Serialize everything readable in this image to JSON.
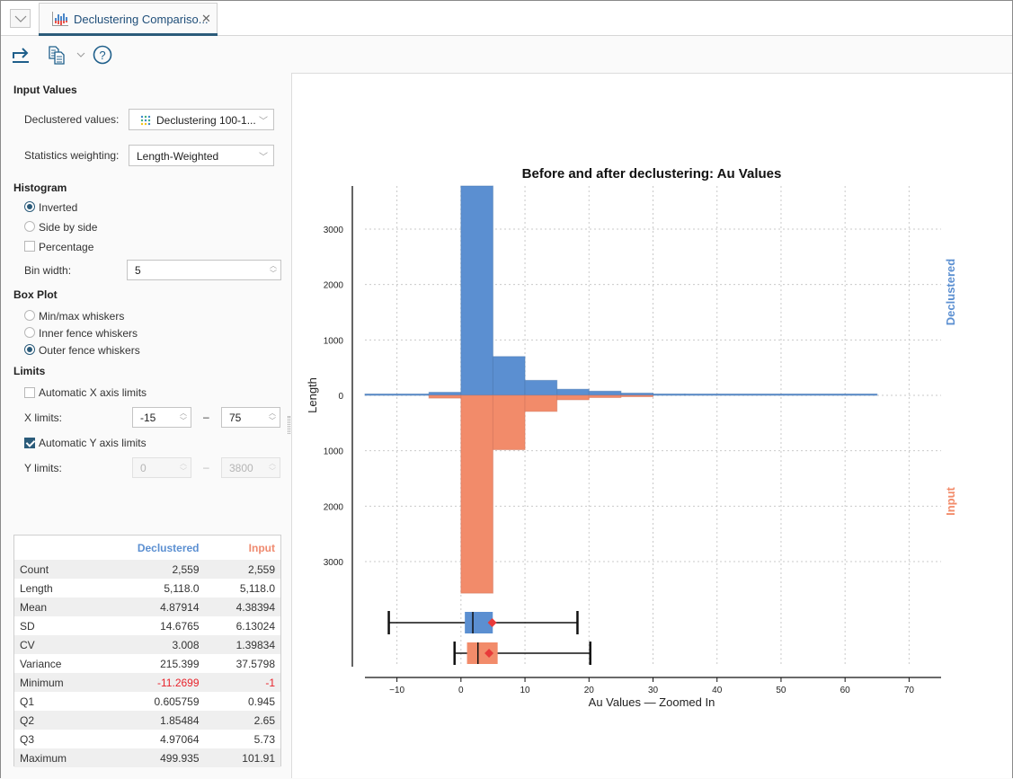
{
  "tab": {
    "title": "Declustering Compariso...",
    "icon": "histogram-chart-icon",
    "close_icon": "close-icon"
  },
  "tab_menu_icon": "chevron-down-icon",
  "toolbar": {
    "export_icon": "export-arrow-icon",
    "copy_icon": "copy-icon",
    "copy_dropdown_icon": "chevron-down-icon",
    "help_icon": "help-icon"
  },
  "input_values": {
    "heading": "Input Values",
    "declustered_label": "Declustered values:",
    "declustered_value": "Declustering 100-1...",
    "declustered_icon": "dot-grid-icon",
    "weighting_label": "Statistics weighting:",
    "weighting_value": "Length-Weighted"
  },
  "histogram": {
    "heading": "Histogram",
    "inverted_label": "Inverted",
    "inverted_selected": true,
    "side_by_side_label": "Side by side",
    "side_by_side_selected": false,
    "percentage_label": "Percentage",
    "percentage_checked": false,
    "bin_width_label": "Bin width:",
    "bin_width_value": "5"
  },
  "box_plot": {
    "heading": "Box Plot",
    "minmax_label": "Min/max whiskers",
    "inner_label": "Inner fence whiskers",
    "outer_label": "Outer fence whiskers",
    "selected": "outer"
  },
  "limits": {
    "heading": "Limits",
    "auto_x_label": "Automatic X axis limits",
    "auto_x_checked": false,
    "x_label": "X limits:",
    "x_min": "-15",
    "x_max": "75",
    "auto_y_label": "Automatic Y axis limits",
    "auto_y_checked": true,
    "y_label": "Y limits:",
    "y_min": "0",
    "y_max": "3800",
    "dash": "–"
  },
  "stats": {
    "headers": [
      "",
      "Declustered",
      "Input"
    ],
    "header_colors": {
      "declustered": "#5b8fd1",
      "input": "#ef8a6f"
    },
    "negative_color": "#e8232b",
    "rows": [
      {
        "label": "Count",
        "declustered": "2,559",
        "input": "2,559"
      },
      {
        "label": "Length",
        "declustered": "5,118.0",
        "input": "5,118.0"
      },
      {
        "label": "Mean",
        "declustered": "4.87914",
        "input": "4.38394"
      },
      {
        "label": "SD",
        "declustered": "14.6765",
        "input": "6.13024"
      },
      {
        "label": "CV",
        "declustered": "3.008",
        "input": "1.39834"
      },
      {
        "label": "Variance",
        "declustered": "215.399",
        "input": "37.5798"
      },
      {
        "label": "Minimum",
        "declustered": "-11.2699",
        "input": "-1"
      },
      {
        "label": "Q1",
        "declustered": "0.605759",
        "input": "0.945"
      },
      {
        "label": "Q2",
        "declustered": "1.85484",
        "input": "2.65"
      },
      {
        "label": "Q3",
        "declustered": "4.97064",
        "input": "5.73"
      },
      {
        "label": "Maximum",
        "declustered": "499.935",
        "input": "101.91"
      }
    ]
  },
  "chart_data": {
    "type": "bar",
    "subtype": "inverted-histogram-with-boxplots",
    "title": "Before and after declustering: Au Values",
    "xlabel": "Au Values — Zoomed In",
    "ylabel": "Length",
    "xlim": [
      -15,
      75
    ],
    "ylim": [
      -3800,
      3800
    ],
    "x_ticks": [
      -10,
      0,
      10,
      20,
      30,
      40,
      50,
      60,
      70
    ],
    "x_tick_labels": [
      "−10",
      "0",
      "10",
      "20",
      "30",
      "40",
      "50",
      "60",
      "70"
    ],
    "y_ticks": [
      3000,
      2000,
      1000,
      0,
      -1000,
      -2000,
      -3000
    ],
    "y_tick_labels": [
      "3000",
      "2000",
      "1000",
      "0",
      "1000",
      "2000",
      "3000"
    ],
    "grid": true,
    "bin_width": 5,
    "series": [
      {
        "name": "Declustered",
        "color": "#5b8fd1",
        "direction": "up",
        "label_position": "right",
        "bins": [
          {
            "x0": -15,
            "x1": -5,
            "value": 15
          },
          {
            "x0": -5,
            "x1": 0,
            "value": 55
          },
          {
            "x0": 0,
            "x1": 5,
            "value": 3800
          },
          {
            "x0": 5,
            "x1": 10,
            "value": 700
          },
          {
            "x0": 10,
            "x1": 15,
            "value": 270
          },
          {
            "x0": 15,
            "x1": 20,
            "value": 110
          },
          {
            "x0": 20,
            "x1": 25,
            "value": 75
          },
          {
            "x0": 25,
            "x1": 30,
            "value": 40
          },
          {
            "x0": 30,
            "x1": 35,
            "value": 25
          },
          {
            "x0": 35,
            "x1": 65,
            "value": 10
          }
        ],
        "box": {
          "whisker_low": -11.27,
          "q1": 0.606,
          "median": 1.855,
          "q3": 4.971,
          "whisker_high": 18.2,
          "mean": 4.879
        }
      },
      {
        "name": "Input",
        "color": "#f28b6a",
        "direction": "down",
        "label_position": "right",
        "bins": [
          {
            "x0": -5,
            "x1": 0,
            "value": 50
          },
          {
            "x0": 0,
            "x1": 5,
            "value": 3570
          },
          {
            "x0": 5,
            "x1": 10,
            "value": 980
          },
          {
            "x0": 10,
            "x1": 15,
            "value": 290
          },
          {
            "x0": 15,
            "x1": 20,
            "value": 80
          },
          {
            "x0": 20,
            "x1": 25,
            "value": 40
          },
          {
            "x0": 25,
            "x1": 30,
            "value": 15
          }
        ],
        "box": {
          "whisker_low": -1,
          "q1": 0.945,
          "median": 2.65,
          "q3": 5.73,
          "whisker_high": 20.2,
          "mean": 4.384
        }
      }
    ],
    "mean_marker_color": "#e83a3a"
  }
}
